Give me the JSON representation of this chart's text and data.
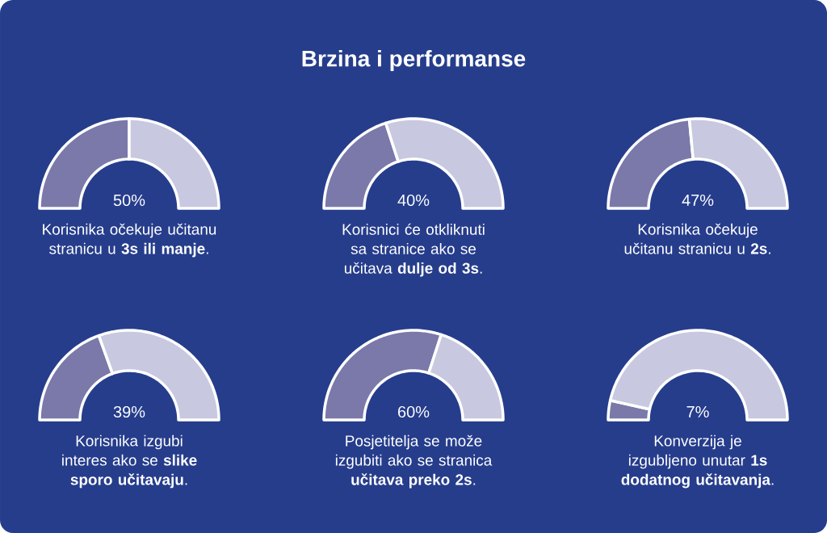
{
  "chart_data": [
    {
      "type": "other",
      "title": "Brzina i performanse"
    },
    {
      "type": "donut",
      "categories": [
        null,
        null
      ],
      "values": [
        50,
        50
      ],
      "colors": [
        "#7a79a9",
        "#c8c8e0"
      ],
      "annotations": [
        "50%",
        "Korisnika očekuje učitanu stranicu u **3s ili manje**."
      ]
    },
    {
      "type": "donut",
      "categories": [
        null,
        null
      ],
      "values": [
        40,
        60
      ],
      "colors": [
        "#7a79a9",
        "#c8c8e0"
      ],
      "annotations": [
        "40%",
        "Korisnici će otkliknuti sa stranice ako se učitava **dulje od 3s**."
      ]
    },
    {
      "type": "donut",
      "categories": [
        null,
        null
      ],
      "values": [
        47,
        53
      ],
      "colors": [
        "#7a79a9",
        "#c8c8e0"
      ],
      "annotations": [
        "47%",
        "Korisnika očekuje učitanu stranicu u **2s**."
      ]
    },
    {
      "type": "donut",
      "categories": [
        null,
        null
      ],
      "values": [
        39,
        61
      ],
      "colors": [
        "#7a79a9",
        "#c8c8e0"
      ],
      "annotations": [
        "39%",
        "Korisnika izgubi interes ako se **slike sporo učitavaju**."
      ]
    },
    {
      "type": "donut",
      "categories": [
        null,
        null
      ],
      "values": [
        60,
        40
      ],
      "colors": [
        "#7a79a9",
        "#c8c8e0"
      ],
      "annotations": [
        "60%",
        "Posjetitelja se može izgubiti ako se stranica **učitava preko 2s**."
      ]
    },
    {
      "type": "donut",
      "categories": [
        null,
        null
      ],
      "values": [
        7,
        93
      ],
      "colors": [
        "#7a79a9",
        "#c8c8e0"
      ],
      "annotations": [
        "7%",
        "Konverzija je izgubljeno unutar **1s dodatnog učitavanja**."
      ]
    }
  ]
}
